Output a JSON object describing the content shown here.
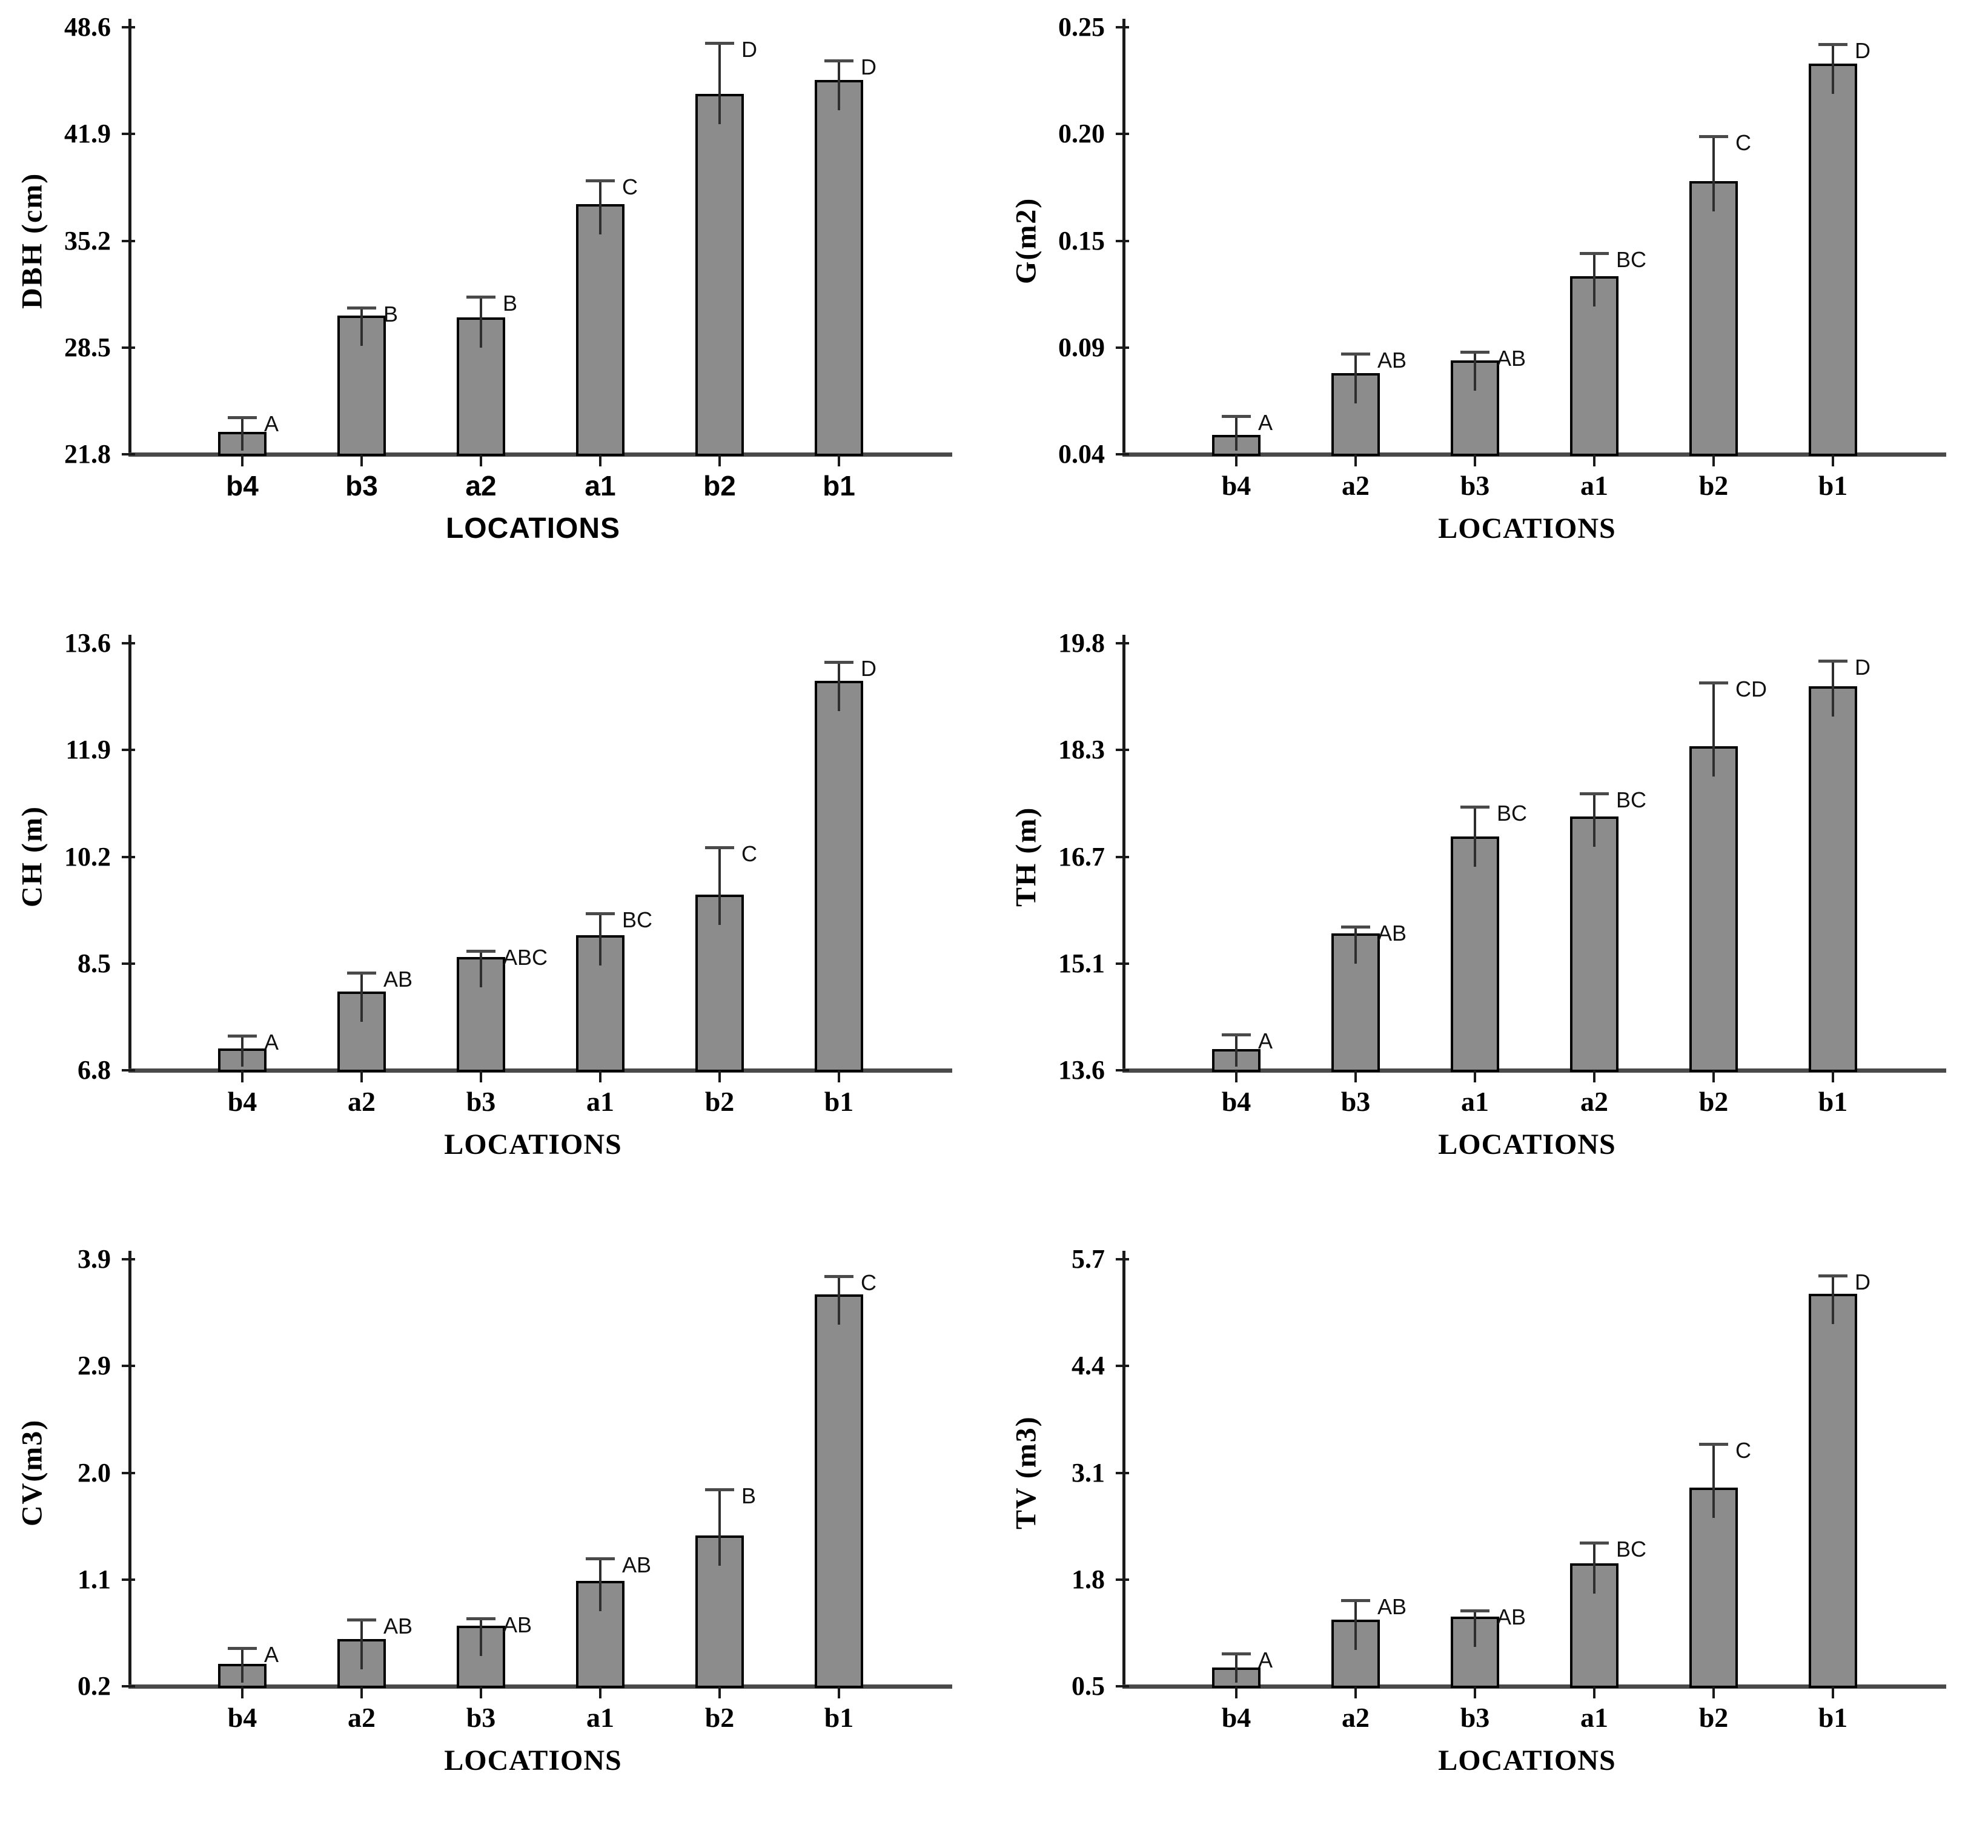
{
  "figure": {
    "description": "Six bar charts of tree growth variables by location with standard-error bars and significance letters",
    "shared_x_axis_title": "LOCATIONS"
  },
  "colors": {
    "background": "#ffffff",
    "bar_fill": "#8c8c8c",
    "bar_border": "#000000",
    "error_bar": "#2e2e2e",
    "error_cap": "#4a4a4a",
    "axis_line": "#1a1a1a",
    "baseline": "#4a4a4a",
    "text": "#000000"
  },
  "chart_data": [
    {
      "key": "dbh",
      "type": "bar",
      "ylabel": "DBH (cm)",
      "xlabel": "LOCATIONS",
      "x_font": "sans",
      "y_ticks": [
        21.8,
        28.5,
        35.2,
        41.9,
        48.6
      ],
      "y_tick_labels": [
        "21.8",
        "28.5",
        "35.2",
        "41.9",
        "48.6"
      ],
      "ylim": [
        21.8,
        48.6
      ],
      "grid": false,
      "categories": [
        "b4",
        "b3",
        "a2",
        "a1",
        "b2",
        "b1"
      ],
      "values": [
        23.2,
        30.5,
        30.4,
        37.5,
        44.4,
        45.3
      ],
      "errors_top": [
        24.1,
        31.0,
        31.7,
        39.0,
        47.6,
        46.5
      ],
      "letters": [
        "A",
        "B",
        "B",
        "C",
        "D",
        "D"
      ]
    },
    {
      "key": "g",
      "type": "bar",
      "ylabel": "G(m2)",
      "xlabel": "LOCATIONS",
      "x_font": "serif",
      "y_ticks": [
        0.04,
        0.09,
        0.15,
        0.2,
        0.25
      ],
      "y_tick_labels": [
        "0.04",
        "0.09",
        "0.15",
        "0.20",
        "0.25"
      ],
      "ylim": [
        0.04,
        0.25
      ],
      "grid": false,
      "categories": [
        "b4",
        "a2",
        "b3",
        "a1",
        "b2",
        "b1"
      ],
      "values": [
        0.049,
        0.078,
        0.084,
        0.13,
        0.178,
        0.233
      ],
      "errors_top": [
        0.058,
        0.087,
        0.088,
        0.143,
        0.199,
        0.242
      ],
      "letters": [
        "A",
        "AB",
        "AB",
        "BC",
        "C",
        "D"
      ]
    },
    {
      "key": "ch",
      "type": "bar",
      "ylabel": "CH (m)",
      "xlabel": "LOCATIONS",
      "x_font": "serif",
      "y_ticks": [
        6.8,
        8.5,
        10.2,
        11.9,
        13.6
      ],
      "y_tick_labels": [
        "6.8",
        "8.5",
        "10.2",
        "11.9",
        "13.6"
      ],
      "ylim": [
        6.8,
        13.6
      ],
      "grid": false,
      "categories": [
        "b4",
        "a2",
        "b3",
        "a1",
        "b2",
        "b1"
      ],
      "values": [
        7.15,
        8.05,
        8.6,
        8.95,
        9.6,
        13.0
      ],
      "errors_top": [
        7.35,
        8.35,
        8.7,
        9.3,
        10.35,
        13.3
      ],
      "letters": [
        "A",
        "AB",
        "ABC",
        "BC",
        "C",
        "D"
      ]
    },
    {
      "key": "th",
      "type": "bar",
      "ylabel": "TH (m)",
      "xlabel": "LOCATIONS",
      "x_font": "serif",
      "y_ticks": [
        13.6,
        15.1,
        16.7,
        18.3,
        19.8
      ],
      "y_tick_labels": [
        "13.6",
        "15.1",
        "16.7",
        "18.3",
        "19.8"
      ],
      "ylim": [
        13.6,
        19.8
      ],
      "grid": false,
      "categories": [
        "b4",
        "b3",
        "a1",
        "a2",
        "b2",
        "b1"
      ],
      "values": [
        13.9,
        15.55,
        17.0,
        17.3,
        18.35,
        19.2
      ],
      "errors_top": [
        14.1,
        15.65,
        17.45,
        17.65,
        19.25,
        19.55
      ],
      "letters": [
        "A",
        "AB",
        "BC",
        "BC",
        "CD",
        "D"
      ]
    },
    {
      "key": "cv",
      "type": "bar",
      "ylabel": "CV(m3)",
      "xlabel": "LOCATIONS",
      "x_font": "serif",
      "y_ticks": [
        0.2,
        1.1,
        2.0,
        2.9,
        3.9
      ],
      "y_tick_labels": [
        "0.2",
        "1.1",
        "2.0",
        "2.9",
        "3.9"
      ],
      "ylim": [
        0.2,
        3.9
      ],
      "grid": false,
      "categories": [
        "b4",
        "a2",
        "b3",
        "a1",
        "b2",
        "b1"
      ],
      "values": [
        0.39,
        0.6,
        0.71,
        1.09,
        1.47,
        3.57
      ],
      "errors_top": [
        0.52,
        0.76,
        0.77,
        1.28,
        1.86,
        3.74
      ],
      "letters": [
        "A",
        "AB",
        "AB",
        "AB",
        "B",
        "C"
      ]
    },
    {
      "key": "tv",
      "type": "bar",
      "ylabel": "TV (m3)",
      "xlabel": "LOCATIONS",
      "x_font": "serif",
      "y_ticks": [
        0.5,
        1.8,
        3.1,
        4.4,
        5.7
      ],
      "y_tick_labels": [
        "0.5",
        "1.8",
        "3.1",
        "4.4",
        "5.7"
      ],
      "ylim": [
        0.5,
        5.7
      ],
      "grid": false,
      "categories": [
        "b4",
        "a2",
        "b3",
        "a1",
        "b2",
        "b1"
      ],
      "values": [
        0.73,
        1.31,
        1.35,
        2.0,
        2.92,
        5.28
      ],
      "errors_top": [
        0.9,
        1.55,
        1.42,
        2.25,
        3.45,
        5.5
      ],
      "letters": [
        "A",
        "AB",
        "AB",
        "BC",
        "C",
        "D"
      ]
    }
  ]
}
